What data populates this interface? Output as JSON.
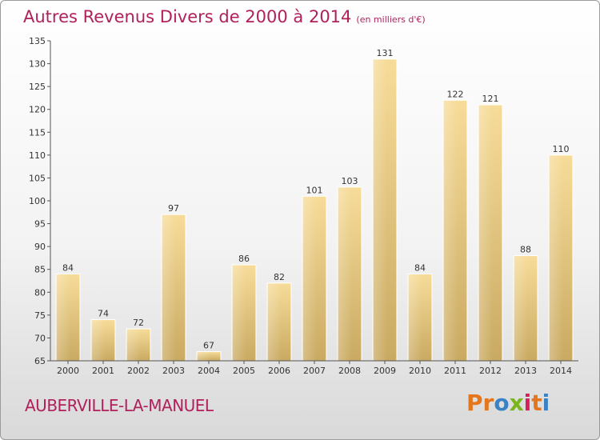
{
  "title": "Autres Revenus Divers de 2000 à 2014",
  "subtitle": "(en milliers d'€)",
  "city": "AUBERVILLE-LA-MANUEL",
  "logo": {
    "text": "Proxiti",
    "letters": [
      "P",
      "r",
      "o",
      "x",
      "i",
      "t",
      "i"
    ],
    "colors": [
      "#e4761e",
      "#e4761e",
      "#3b82c4",
      "#7ab51d",
      "#d61f5b",
      "#e4761e",
      "#3b82c4"
    ]
  },
  "colors": {
    "bar_top": "#f7dc99",
    "bar_bottom": "#c9aa62",
    "axis": "#555555",
    "grid": "#cccccc",
    "title": "#b0215c"
  },
  "chart_data": {
    "type": "bar",
    "title": "Autres Revenus Divers de 2000 à 2014",
    "subtitle": "(en milliers d'€)",
    "categories": [
      "2000",
      "2001",
      "2002",
      "2003",
      "2004",
      "2005",
      "2006",
      "2007",
      "2008",
      "2009",
      "2010",
      "2011",
      "2012",
      "2013",
      "2014"
    ],
    "values": [
      84,
      74,
      72,
      97,
      67,
      86,
      82,
      101,
      103,
      131,
      84,
      122,
      121,
      88,
      110
    ],
    "ylim": [
      65,
      135
    ],
    "yticks": [
      65,
      70,
      75,
      80,
      85,
      90,
      95,
      100,
      105,
      110,
      115,
      120,
      125,
      130,
      135
    ],
    "grid": false,
    "xlabel": "",
    "ylabel": ""
  }
}
